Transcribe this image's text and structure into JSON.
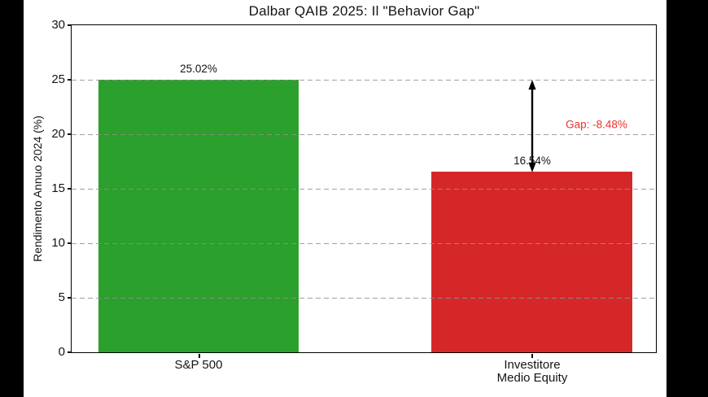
{
  "window": {
    "background_color": "#000000",
    "figure_background_color": "#ffffff"
  },
  "chart_data": {
    "type": "bar",
    "title": "Dalbar QAIB 2025: Il \"Behavior Gap\"",
    "ylabel": "Rendimento Annuo 2024 (%)",
    "xlabel": "",
    "categories": [
      "S&P 500",
      "Investitore Medio Equity"
    ],
    "category_lines": [
      [
        "S&P 500"
      ],
      [
        "Investitore",
        "Medio Equity"
      ]
    ],
    "values": [
      25.02,
      16.54
    ],
    "value_labels": [
      "25.02%",
      "16.54%"
    ],
    "bar_colors": [
      "#2ca02c",
      "#d62728"
    ],
    "ylim": [
      0,
      30
    ],
    "yticks": [
      0,
      5,
      10,
      15,
      20,
      25,
      30
    ],
    "grid": {
      "axis": "y",
      "style": "dashed",
      "color": "#919191"
    },
    "annotation": {
      "text": "Gap: -8.48%",
      "color": "#f03028",
      "arrow": {
        "type": "double-headed-vertical",
        "color": "#000000",
        "from_value": 16.54,
        "to_value": 25.02,
        "at_category": "Investitore Medio Equity"
      }
    }
  }
}
